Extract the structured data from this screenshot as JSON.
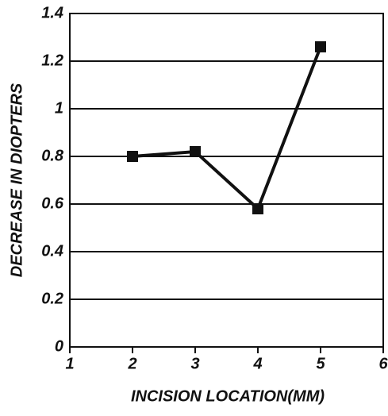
{
  "chart_data": {
    "type": "line",
    "xlabel": "INCISION LOCATION(MM)",
    "ylabel": "DECREASE IN DIOPTERS",
    "x": [
      2,
      3,
      4,
      5
    ],
    "series": [
      {
        "color": "#111111",
        "values": [
          0.8,
          0.82,
          0.58,
          1.26
        ]
      }
    ],
    "xlim": [
      1,
      6
    ],
    "xticks": [
      1,
      2,
      3,
      4,
      5,
      6
    ],
    "ylim": [
      0,
      1.4
    ],
    "yticks": [
      0,
      0.2,
      0.4,
      0.6,
      0.8,
      1,
      1.2,
      1.4
    ],
    "grid": true
  }
}
